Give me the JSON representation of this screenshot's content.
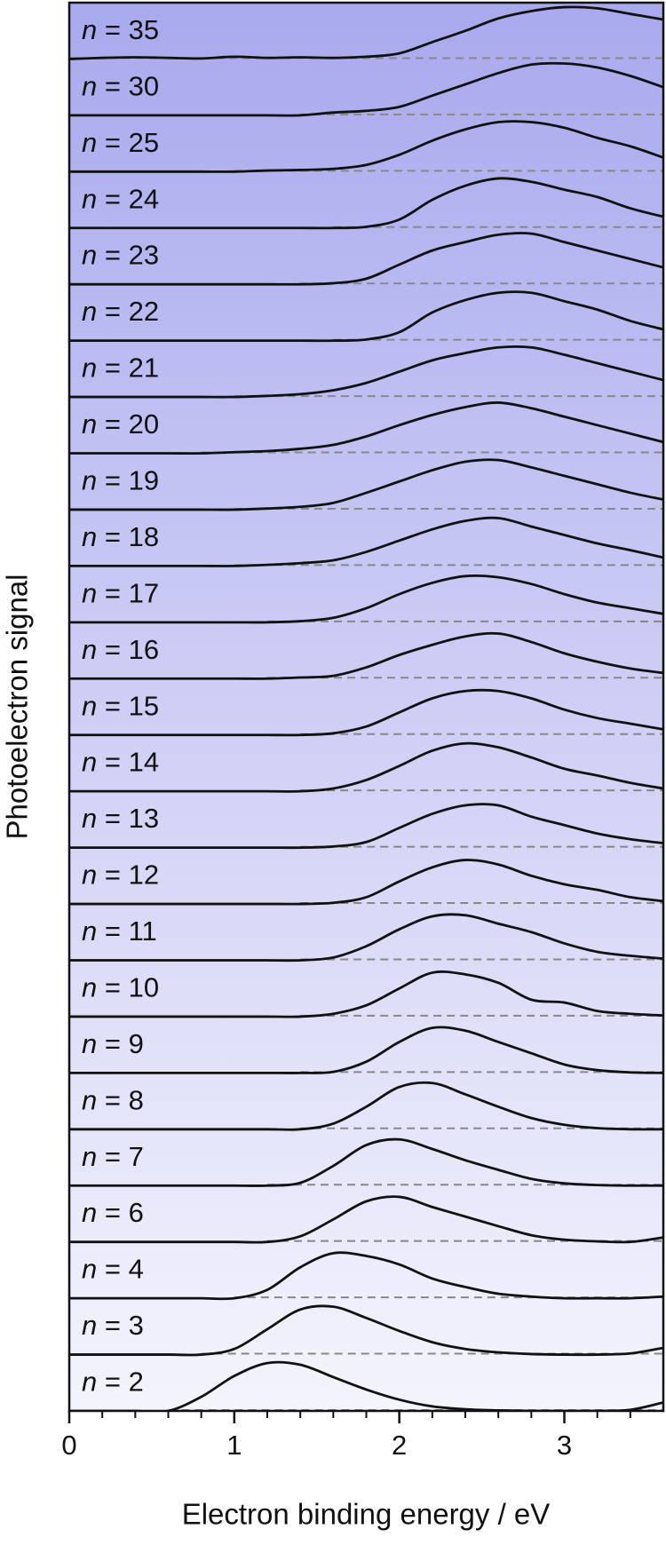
{
  "chart_data": {
    "type": "stacked_line",
    "xlabel": "Electron binding energy / eV",
    "ylabel": "Photoelectron signal",
    "xlim": [
      0,
      3.6
    ],
    "xticks": [
      0,
      1,
      2,
      3
    ],
    "xminorticks": [
      0.2,
      0.4,
      0.6,
      0.8,
      1.2,
      1.4,
      1.6,
      1.8,
      2.2,
      2.4,
      2.6,
      2.8,
      3.2,
      3.4
    ],
    "color": "#111111",
    "baseline_color": "#888888",
    "background_gradient": [
      "#a9a9ee",
      "#f4f4fd"
    ],
    "x": [
      0,
      0.2,
      0.4,
      0.6,
      0.8,
      1.0,
      1.2,
      1.4,
      1.6,
      1.8,
      2.0,
      2.2,
      2.4,
      2.6,
      2.8,
      3.0,
      3.2,
      3.4,
      3.6
    ],
    "series": [
      {
        "name": "n = 35",
        "values": [
          0,
          0.02,
          0.03,
          0.02,
          0.01,
          0.04,
          0.02,
          0.03,
          0.02,
          0.04,
          0.1,
          0.3,
          0.5,
          0.72,
          0.85,
          0.92,
          0.9,
          0.8,
          0.7
        ]
      },
      {
        "name": "n = 30",
        "values": [
          0,
          0,
          0,
          0,
          0,
          0,
          0,
          0,
          0.05,
          0.08,
          0.15,
          0.35,
          0.55,
          0.75,
          0.9,
          0.92,
          0.85,
          0.7,
          0.5
        ]
      },
      {
        "name": "n = 25",
        "values": [
          0,
          0,
          0,
          0,
          0,
          0,
          0.02,
          0.03,
          0.05,
          0.12,
          0.3,
          0.55,
          0.75,
          0.88,
          0.88,
          0.78,
          0.6,
          0.45,
          0.25
        ]
      },
      {
        "name": "n = 24",
        "values": [
          0,
          0,
          0,
          0,
          0,
          0,
          0,
          0,
          0,
          0.02,
          0.15,
          0.5,
          0.75,
          0.88,
          0.82,
          0.68,
          0.55,
          0.35,
          0.2
        ]
      },
      {
        "name": "n = 23",
        "values": [
          0,
          0,
          0,
          0,
          0,
          0,
          0,
          0,
          0.02,
          0.1,
          0.35,
          0.6,
          0.75,
          0.88,
          0.9,
          0.75,
          0.6,
          0.45,
          0.3
        ]
      },
      {
        "name": "n = 22",
        "values": [
          0,
          0,
          0,
          0,
          0,
          0,
          0,
          0,
          0,
          0.02,
          0.15,
          0.5,
          0.72,
          0.85,
          0.85,
          0.7,
          0.55,
          0.35,
          0.2
        ]
      },
      {
        "name": "n = 21",
        "values": [
          0,
          0,
          0,
          0,
          0,
          0,
          0.02,
          0.05,
          0.12,
          0.25,
          0.45,
          0.65,
          0.78,
          0.88,
          0.88,
          0.75,
          0.6,
          0.45,
          0.3
        ]
      },
      {
        "name": "n = 20",
        "values": [
          0,
          0,
          0,
          0,
          0,
          0.02,
          0.04,
          0.08,
          0.15,
          0.3,
          0.5,
          0.68,
          0.82,
          0.9,
          0.8,
          0.65,
          0.5,
          0.35,
          0.2
        ]
      },
      {
        "name": "n = 19",
        "values": [
          0,
          0,
          0,
          0,
          0,
          0,
          0.02,
          0.05,
          0.12,
          0.3,
          0.5,
          0.7,
          0.85,
          0.88,
          0.75,
          0.6,
          0.45,
          0.3,
          0.18
        ]
      },
      {
        "name": "n = 18",
        "values": [
          0,
          0,
          0,
          0,
          0,
          0,
          0.02,
          0.05,
          0.1,
          0.25,
          0.45,
          0.65,
          0.8,
          0.85,
          0.7,
          0.55,
          0.4,
          0.28,
          0.15
        ]
      },
      {
        "name": "n = 17",
        "values": [
          0,
          0,
          0,
          0,
          0,
          0,
          0,
          0.02,
          0.08,
          0.25,
          0.5,
          0.7,
          0.82,
          0.8,
          0.68,
          0.5,
          0.35,
          0.25,
          0.15
        ]
      },
      {
        "name": "n = 16",
        "values": [
          0,
          0,
          0,
          0,
          0,
          0,
          0,
          0.02,
          0.05,
          0.2,
          0.42,
          0.6,
          0.75,
          0.8,
          0.65,
          0.45,
          0.3,
          0.18,
          0.1
        ]
      },
      {
        "name": "n = 15",
        "values": [
          0,
          0,
          0,
          0,
          0,
          0,
          0,
          0,
          0.03,
          0.15,
          0.4,
          0.65,
          0.78,
          0.78,
          0.65,
          0.45,
          0.3,
          0.2,
          0.1
        ]
      },
      {
        "name": "n = 14",
        "values": [
          0,
          0,
          0,
          0,
          0,
          0,
          0,
          0,
          0.05,
          0.2,
          0.45,
          0.72,
          0.85,
          0.78,
          0.6,
          0.4,
          0.28,
          0.15,
          0.05
        ]
      },
      {
        "name": "n = 13",
        "values": [
          0,
          0,
          0,
          0,
          0,
          0,
          0,
          0,
          0.02,
          0.1,
          0.35,
          0.6,
          0.75,
          0.75,
          0.55,
          0.4,
          0.25,
          0.15,
          0.08
        ]
      },
      {
        "name": "n = 12",
        "values": [
          0,
          0,
          0,
          0,
          0,
          0,
          0,
          0,
          0.02,
          0.12,
          0.4,
          0.65,
          0.78,
          0.7,
          0.5,
          0.35,
          0.25,
          0.12,
          0.05
        ]
      },
      {
        "name": "n = 11",
        "values": [
          0,
          0,
          0,
          0,
          0,
          0,
          0,
          0,
          0.05,
          0.25,
          0.55,
          0.78,
          0.8,
          0.65,
          0.5,
          0.3,
          0.15,
          0.08,
          0.03
        ]
      },
      {
        "name": "n = 10",
        "values": [
          0,
          0,
          0,
          0,
          0,
          0,
          0,
          0,
          0.05,
          0.2,
          0.5,
          0.78,
          0.75,
          0.6,
          0.3,
          0.25,
          0.1,
          0.05,
          0.02
        ]
      },
      {
        "name": "n = 9",
        "values": [
          0,
          0,
          0,
          0,
          0,
          0,
          0,
          0,
          0.02,
          0.2,
          0.55,
          0.8,
          0.75,
          0.55,
          0.35,
          0.15,
          0.05,
          0.01,
          0
        ]
      },
      {
        "name": "n = 8",
        "values": [
          0,
          0,
          0,
          0,
          0,
          0,
          0,
          0,
          0.1,
          0.4,
          0.75,
          0.82,
          0.62,
          0.4,
          0.2,
          0.08,
          0.02,
          0,
          0
        ]
      },
      {
        "name": "n = 7",
        "values": [
          0,
          0,
          0,
          0,
          0,
          0,
          0,
          0.05,
          0.35,
          0.72,
          0.82,
          0.65,
          0.45,
          0.28,
          0.12,
          0.04,
          0.01,
          0,
          0
        ]
      },
      {
        "name": "n = 6",
        "values": [
          0,
          0,
          0,
          0,
          0,
          0,
          0,
          0.1,
          0.4,
          0.72,
          0.8,
          0.62,
          0.45,
          0.28,
          0.12,
          0.04,
          0.01,
          0,
          0.08
        ]
      },
      {
        "name": "n = 4",
        "values": [
          0,
          0,
          0,
          0,
          0,
          0,
          0.15,
          0.55,
          0.8,
          0.75,
          0.6,
          0.35,
          0.2,
          0.08,
          0.03,
          0,
          0,
          0,
          0.03
        ]
      },
      {
        "name": "n = 3",
        "values": [
          0,
          0,
          0,
          0,
          0,
          0.1,
          0.45,
          0.8,
          0.85,
          0.65,
          0.42,
          0.22,
          0.1,
          0.04,
          0.01,
          0,
          0,
          0.02,
          0.12
        ]
      },
      {
        "name": "n = 2",
        "values": [
          0,
          0,
          0,
          0,
          0.25,
          0.62,
          0.85,
          0.82,
          0.6,
          0.38,
          0.2,
          0.08,
          0.03,
          0.01,
          0,
          0,
          0,
          0.02,
          0.15
        ]
      }
    ]
  }
}
